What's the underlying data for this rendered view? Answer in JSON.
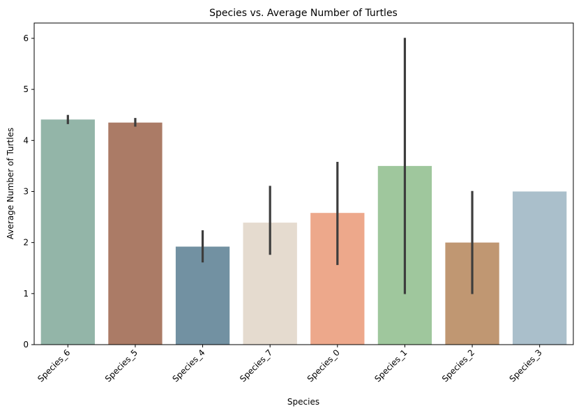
{
  "chart_data": {
    "type": "bar",
    "title": "Species vs. Average Number of Turtles",
    "xlabel": "Species",
    "ylabel": "Average Number of Turtles",
    "ylim": [
      0,
      6.3
    ],
    "yticks": [
      0,
      1,
      2,
      3,
      4,
      5,
      6
    ],
    "categories": [
      "Species_6",
      "Species_5",
      "Species_4",
      "Species_7",
      "Species_0",
      "Species_1",
      "Species_2",
      "Species_3"
    ],
    "values": [
      4.41,
      4.35,
      1.92,
      2.39,
      2.58,
      3.5,
      2.0,
      3.0
    ],
    "error_low": [
      4.32,
      4.27,
      1.61,
      1.76,
      1.56,
      0.99,
      0.99,
      3.0
    ],
    "error_high": [
      4.5,
      4.44,
      2.24,
      3.11,
      3.58,
      6.01,
      3.01,
      3.0
    ],
    "colors": [
      "#93b5a8",
      "#ab7b66",
      "#7291a2",
      "#e5dbcf",
      "#eda88b",
      "#9fc79d",
      "#c09772",
      "#aabfcb"
    ],
    "error_color": "#3d3d3d",
    "grid": false,
    "legend": "none"
  }
}
